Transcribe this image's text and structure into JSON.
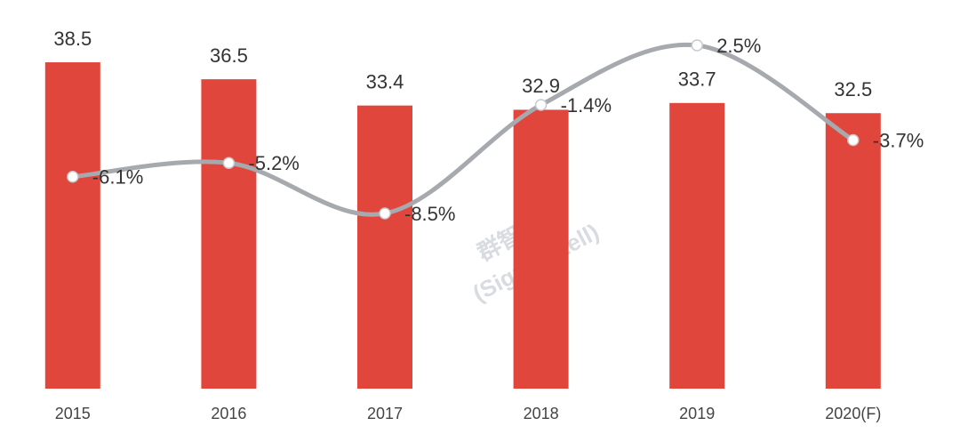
{
  "chart_data": {
    "type": "bar",
    "categories": [
      "2015",
      "2016",
      "2017",
      "2018",
      "2019",
      "2020(F)"
    ],
    "series": [
      {
        "type": "bar",
        "color": "#e0463c",
        "values": [
          38.5,
          36.5,
          33.4,
          32.9,
          33.7,
          32.5
        ]
      },
      {
        "type": "line",
        "axis": "y2",
        "color": "#a6a9ad",
        "values": [
          -6.1,
          -5.2,
          -8.5,
          -1.4,
          2.5,
          -3.7
        ],
        "value_labels": [
          "-6.1%",
          "-5.2%",
          "-8.5%",
          "-1.4%",
          "2.5%",
          "-3.7%"
        ]
      }
    ],
    "ylim": [
      0,
      45.85
    ],
    "y2lim": [
      -19.97,
      5.47
    ],
    "watermark": [
      "群智咨询",
      "(Sigmaintell)"
    ]
  }
}
